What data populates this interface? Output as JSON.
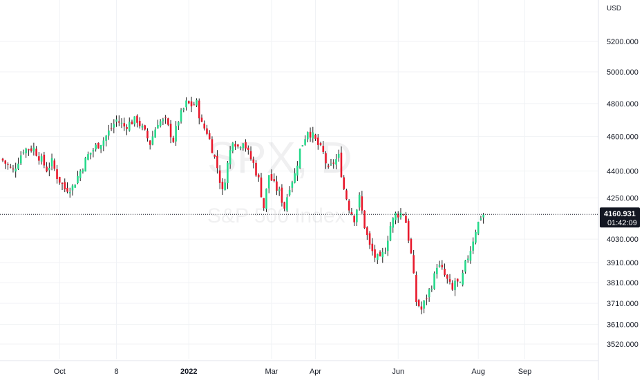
{
  "currency": "USD",
  "watermark": {
    "symbol": "SPX, D",
    "name": "S&P 500 Index"
  },
  "last_price": {
    "value": "4160.931",
    "countdown": "01:42:09",
    "bg": "#131722"
  },
  "colors": {
    "up": "#26d98b",
    "down": "#e8192c",
    "grid": "#f0f2f5",
    "wick": "#1b1b1b"
  },
  "chart_data": {
    "type": "candlestick",
    "y_axis": {
      "scale": "log",
      "ticks": [
        3520,
        3610,
        3710,
        3810,
        3910,
        4030,
        4250,
        4400,
        4600,
        4800,
        5000,
        5200
      ],
      "tick_labels": [
        "3520.000",
        "3610.000",
        "3710.000",
        "3810.000",
        "3910.000",
        "4030.000",
        "4250.000",
        "4400.000",
        "4600.000",
        "4800.000",
        "5000.000",
        "5200.000"
      ]
    },
    "x_axis": {
      "labels": [
        {
          "text": "Oct",
          "index": 22,
          "bold": false
        },
        {
          "text": "8",
          "index": 44,
          "bold": false
        },
        {
          "text": "2022",
          "index": 72,
          "bold": true
        },
        {
          "text": "Mar",
          "index": 104,
          "bold": false
        },
        {
          "text": "Apr",
          "index": 121,
          "bold": false
        },
        {
          "text": "Jun",
          "index": 153,
          "bold": false
        },
        {
          "text": "Aug",
          "index": 184,
          "bold": false
        },
        {
          "text": "Sep",
          "index": 202,
          "bold": false
        }
      ]
    },
    "close_keypoints": [
      [
        0,
        4460
      ],
      [
        4,
        4400
      ],
      [
        8,
        4525
      ],
      [
        12,
        4530
      ],
      [
        15,
        4460
      ],
      [
        17,
        4410
      ],
      [
        19,
        4450
      ],
      [
        21,
        4370
      ],
      [
        24,
        4300
      ],
      [
        27,
        4310
      ],
      [
        30,
        4400
      ],
      [
        33,
        4490
      ],
      [
        36,
        4540
      ],
      [
        39,
        4580
      ],
      [
        42,
        4650
      ],
      [
        44,
        4700
      ],
      [
        47,
        4660
      ],
      [
        50,
        4690
      ],
      [
        52,
        4700
      ],
      [
        55,
        4620
      ],
      [
        57,
        4560
      ],
      [
        60,
        4690
      ],
      [
        63,
        4690
      ],
      [
        66,
        4580
      ],
      [
        68,
        4700
      ],
      [
        71,
        4800
      ],
      [
        73,
        4790
      ],
      [
        75,
        4800
      ],
      [
        77,
        4670
      ],
      [
        79,
        4630
      ],
      [
        81,
        4530
      ],
      [
        83,
        4420
      ],
      [
        85,
        4280
      ],
      [
        87,
        4440
      ],
      [
        89,
        4590
      ],
      [
        91,
        4540
      ],
      [
        93,
        4580
      ],
      [
        95,
        4500
      ],
      [
        97,
        4440
      ],
      [
        99,
        4350
      ],
      [
        101,
        4200
      ],
      [
        103,
        4380
      ],
      [
        105,
        4320
      ],
      [
        107,
        4280
      ],
      [
        109,
        4200
      ],
      [
        111,
        4320
      ],
      [
        113,
        4380
      ],
      [
        115,
        4520
      ],
      [
        118,
        4640
      ],
      [
        120,
        4600
      ],
      [
        122,
        4550
      ],
      [
        124,
        4500
      ],
      [
        126,
        4400
      ],
      [
        128,
        4450
      ],
      [
        130,
        4480
      ],
      [
        132,
        4300
      ],
      [
        134,
        4200
      ],
      [
        136,
        4140
      ],
      [
        138,
        4250
      ],
      [
        140,
        4100
      ],
      [
        142,
        3990
      ],
      [
        144,
        3940
      ],
      [
        146,
        3920
      ],
      [
        148,
        3980
      ],
      [
        150,
        4100
      ],
      [
        152,
        4160
      ],
      [
        155,
        4170
      ],
      [
        156,
        4120
      ],
      [
        158,
        3950
      ],
      [
        160,
        3720
      ],
      [
        162,
        3680
      ],
      [
        164,
        3740
      ],
      [
        166,
        3800
      ],
      [
        167,
        3840
      ],
      [
        168,
        3900
      ],
      [
        170,
        3870
      ],
      [
        172,
        3820
      ],
      [
        174,
        3770
      ],
      [
        175,
        3820
      ],
      [
        177,
        3790
      ],
      [
        179,
        3900
      ],
      [
        181,
        3980
      ],
      [
        183,
        4080
      ],
      [
        185,
        4150
      ],
      [
        186,
        4160.931
      ]
    ],
    "last_close": 4160.931,
    "x_range": [
      0,
      210
    ]
  }
}
